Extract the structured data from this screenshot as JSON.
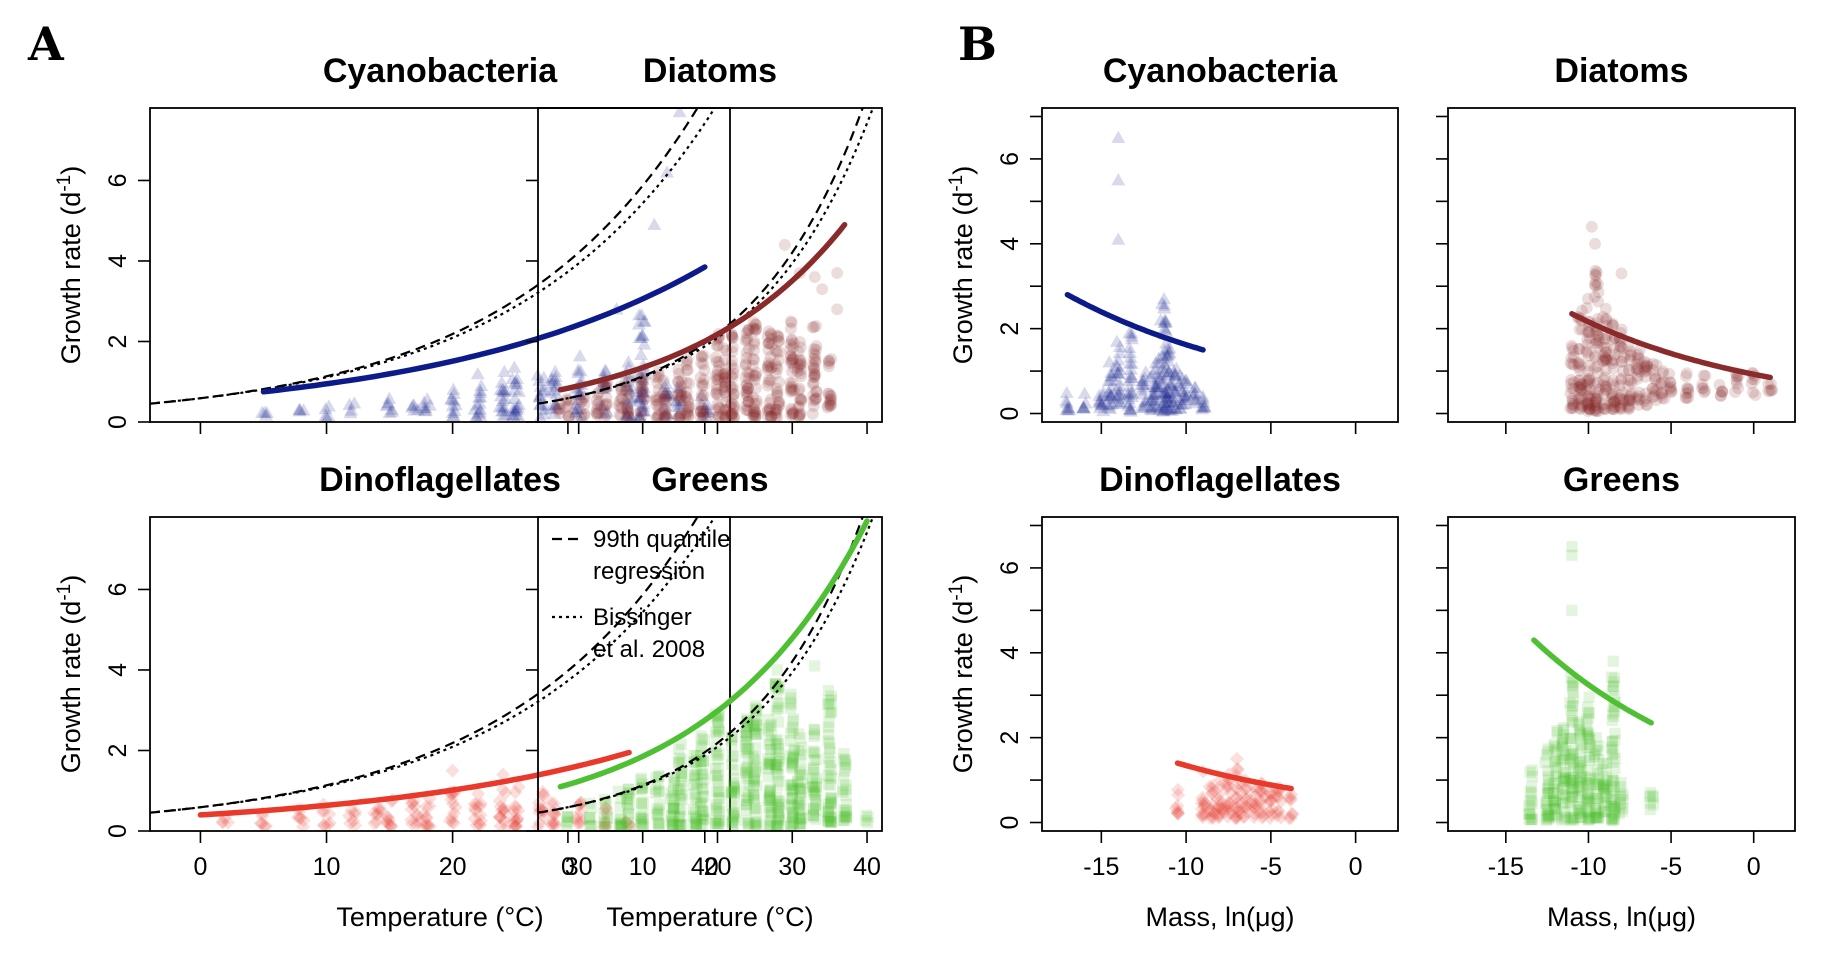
{
  "figure": {
    "panel_letters": [
      "A",
      "B"
    ],
    "legend": {
      "dashed_label_1": "99th quantile",
      "dashed_label_2": "regression",
      "dotted_label_1": "Bissinger",
      "dotted_label_2": "et al. 2008"
    }
  },
  "colors": {
    "Cyanobacteria": "#0d1a8a",
    "Diatoms": "#8b2a2a",
    "Dinoflagellates": "#e8392a",
    "Greens": "#4fc034"
  },
  "chart_data": [
    {
      "id": "A-Cyanobacteria",
      "type": "scatter",
      "group": "A",
      "title": "Cyanobacteria",
      "xlabel": "",
      "ylabel": "Growth rate (d^-1)",
      "xlim": [
        -4,
        42
      ],
      "ylim": [
        0,
        7.8
      ],
      "xticks": [
        0,
        10,
        20,
        30,
        40
      ],
      "yticks": [
        0,
        2,
        4,
        6
      ],
      "show_xticklabels": false,
      "show_yticklabels": true,
      "marker": "triangle",
      "point_columns": [
        [
          5,
          0.15,
          0.3
        ],
        [
          8,
          0.2,
          0.35
        ],
        [
          10,
          0.1,
          0.45
        ],
        [
          12,
          0.2,
          0.5
        ],
        [
          15,
          0.1,
          0.6
        ],
        [
          17,
          0.2,
          0.55
        ],
        [
          18,
          0.2,
          0.7
        ],
        [
          20,
          0.15,
          0.9
        ],
        [
          22,
          0.1,
          1.2
        ],
        [
          24,
          0.1,
          1.3
        ],
        [
          25,
          0.1,
          1.5
        ],
        [
          27,
          0.1,
          1.2
        ],
        [
          28,
          0.2,
          1.4
        ],
        [
          30,
          0.1,
          1.7
        ],
        [
          32,
          0.2,
          1.3
        ],
        [
          34,
          0.1,
          1.5
        ],
        [
          35,
          0.1,
          2.8
        ],
        [
          37,
          0.1,
          1.0
        ],
        [
          38,
          0.2,
          0.9
        ],
        [
          40,
          0.1,
          0.8
        ]
      ],
      "extra_points": [
        [
          38,
          7.7
        ],
        [
          37,
          6.2
        ],
        [
          36,
          4.9
        ],
        [
          33,
          2.8
        ]
      ],
      "fit_range": [
        5,
        40
      ],
      "fit_endpoints": [
        0.75,
        3.85
      ],
      "quantile_line": [
        0.59,
        0.0655
      ],
      "bissinger_line": [
        0.59,
        0.0633
      ]
    },
    {
      "id": "A-Diatoms",
      "type": "scatter",
      "group": "A",
      "title": "Diatoms",
      "xlabel": "",
      "ylabel": "",
      "xlim": [
        -4,
        42
      ],
      "ylim": [
        0,
        7.8
      ],
      "xticks": [
        0,
        10,
        20,
        30,
        40
      ],
      "yticks": [
        0,
        2,
        4,
        6
      ],
      "show_xticklabels": false,
      "show_yticklabels": false,
      "marker": "circle",
      "point_columns": [
        [
          -1,
          0.15,
          0.5
        ],
        [
          0,
          0.1,
          0.7
        ],
        [
          2,
          0.1,
          0.7
        ],
        [
          4,
          0.1,
          0.8
        ],
        [
          5,
          0.1,
          1.0
        ],
        [
          7,
          0.1,
          0.9
        ],
        [
          8,
          0.1,
          1.1
        ],
        [
          10,
          0.1,
          1.2
        ],
        [
          12,
          0.1,
          1.3
        ],
        [
          13,
          0.1,
          1.2
        ],
        [
          15,
          0.1,
          1.5
        ],
        [
          16,
          0.1,
          1.6
        ],
        [
          18,
          0.1,
          1.8
        ],
        [
          20,
          0.1,
          2.2
        ],
        [
          21,
          0.1,
          2.0
        ],
        [
          22,
          0.1,
          2.4
        ],
        [
          24,
          0.1,
          2.4
        ],
        [
          25,
          0.1,
          2.6
        ],
        [
          27,
          0.1,
          2.5
        ],
        [
          28,
          0.1,
          2.2
        ],
        [
          30,
          0.1,
          2.5
        ],
        [
          31,
          0.1,
          2.0
        ],
        [
          33,
          0.2,
          2.4
        ],
        [
          35,
          0.3,
          1.6
        ]
      ],
      "extra_points": [
        [
          29,
          4.4
        ],
        [
          31,
          3.7
        ],
        [
          33,
          3.6
        ],
        [
          36,
          3.7
        ],
        [
          36,
          2.8
        ],
        [
          34,
          3.3
        ]
      ],
      "fit_range": [
        -1,
        37
      ],
      "fit_endpoints": [
        0.8,
        4.9
      ],
      "quantile_line": [
        0.59,
        0.0655
      ],
      "bissinger_line": [
        0.59,
        0.0633
      ]
    },
    {
      "id": "A-Dinoflagellates",
      "type": "scatter",
      "group": "A",
      "title": "Dinoflagellates",
      "xlabel": "Temperature (°C)",
      "ylabel": "Growth rate (d^-1)",
      "xlim": [
        -4,
        42
      ],
      "ylim": [
        0,
        7.8
      ],
      "xticks": [
        0,
        10,
        20,
        30,
        40
      ],
      "yticks": [
        0,
        2,
        4,
        6
      ],
      "show_xticklabels": true,
      "show_yticklabels": true,
      "marker": "diamond",
      "point_columns": [
        [
          2,
          0.2,
          0.4
        ],
        [
          5,
          0.1,
          0.5
        ],
        [
          8,
          0.1,
          0.6
        ],
        [
          10,
          0.1,
          0.7
        ],
        [
          12,
          0.1,
          0.6
        ],
        [
          14,
          0.1,
          0.7
        ],
        [
          15,
          0.1,
          0.8
        ],
        [
          17,
          0.1,
          0.9
        ],
        [
          18,
          0.1,
          0.9
        ],
        [
          20,
          0.1,
          1.0
        ],
        [
          22,
          0.1,
          1.0
        ],
        [
          24,
          0.1,
          1.1
        ],
        [
          25,
          0.1,
          1.2
        ],
        [
          27,
          0.1,
          1.0
        ],
        [
          28,
          0.1,
          0.9
        ],
        [
          30,
          0.1,
          0.8
        ],
        [
          32,
          0.1,
          0.6
        ],
        [
          34,
          0.1,
          0.4
        ]
      ],
      "extra_points": [
        [
          20,
          1.5
        ],
        [
          24,
          1.4
        ]
      ],
      "fit_range": [
        0,
        34
      ],
      "fit_endpoints": [
        0.4,
        1.95
      ],
      "quantile_line": [
        0.59,
        0.0655
      ],
      "bissinger_line": [
        0.59,
        0.0633
      ]
    },
    {
      "id": "A-Greens",
      "type": "scatter",
      "group": "A",
      "title": "Greens",
      "xlabel": "Temperature (°C)",
      "ylabel": "",
      "xlim": [
        -4,
        42
      ],
      "ylim": [
        0,
        7.8
      ],
      "xticks": [
        0,
        10,
        20,
        30,
        40
      ],
      "yticks": [
        0,
        2,
        4,
        6
      ],
      "show_xticklabels": true,
      "show_yticklabels": false,
      "marker": "square",
      "point_columns": [
        [
          0,
          0.1,
          0.5
        ],
        [
          3,
          0.1,
          0.7
        ],
        [
          5,
          0.1,
          0.8
        ],
        [
          7,
          0.1,
          1.0
        ],
        [
          8,
          0.1,
          1.2
        ],
        [
          10,
          0.1,
          1.5
        ],
        [
          12,
          0.1,
          1.4
        ],
        [
          14,
          0.1,
          1.8
        ],
        [
          15,
          0.1,
          2.2
        ],
        [
          17,
          0.1,
          2.0
        ],
        [
          18,
          0.1,
          2.4
        ],
        [
          20,
          0.1,
          3.0
        ],
        [
          22,
          0.1,
          2.4
        ],
        [
          24,
          0.1,
          2.8
        ],
        [
          25,
          0.1,
          3.2
        ],
        [
          27,
          0.1,
          2.8
        ],
        [
          28,
          0.1,
          3.8
        ],
        [
          30,
          0.1,
          3.4
        ],
        [
          31,
          0.1,
          2.5
        ],
        [
          33,
          0.1,
          2.6
        ],
        [
          35,
          0.2,
          3.6
        ],
        [
          37,
          0.2,
          2.0
        ],
        [
          40,
          0.2,
          0.5
        ]
      ],
      "extra_points": [
        [
          28,
          4.0
        ],
        [
          33,
          4.1
        ]
      ],
      "fit_range": [
        -1,
        40
      ],
      "fit_endpoints": [
        1.1,
        7.7
      ],
      "quantile_line": [
        0.59,
        0.0655
      ],
      "bissinger_line": [
        0.59,
        0.0633
      ]
    },
    {
      "id": "B-Cyanobacteria",
      "type": "scatter",
      "group": "B",
      "title": "Cyanobacteria",
      "xlabel": "",
      "ylabel": "Growth rate (d^-1)",
      "xlim": [
        -18.5,
        2.5
      ],
      "ylim": [
        -0.2,
        7.2
      ],
      "xticks": [
        -15,
        -10,
        -5,
        0
      ],
      "yticks": [
        0,
        2,
        4,
        6
      ],
      "show_xticklabels": false,
      "show_yticklabels": true,
      "marker": "triangle",
      "point_columns": [
        [
          -17,
          0.05,
          0.6
        ],
        [
          -16,
          0.1,
          0.5
        ],
        [
          -15,
          0.05,
          0.8
        ],
        [
          -14.5,
          0.1,
          1.3
        ],
        [
          -14,
          0.2,
          1.7
        ],
        [
          -13.3,
          0.05,
          2.0
        ],
        [
          -12.5,
          0.1,
          1.1
        ],
        [
          -12,
          0.05,
          1.0
        ],
        [
          -11.7,
          0.05,
          1.3
        ],
        [
          -11.3,
          0.05,
          2.6
        ],
        [
          -11,
          0.05,
          1.6
        ],
        [
          -10.7,
          0.05,
          1.2
        ],
        [
          -10.3,
          0.1,
          0.9
        ],
        [
          -10,
          0.1,
          0.8
        ],
        [
          -9.5,
          0.1,
          0.7
        ],
        [
          -9,
          0.1,
          0.7
        ]
      ],
      "extra_points": [
        [
          -14,
          6.5
        ],
        [
          -14,
          5.5
        ],
        [
          -14,
          4.1
        ],
        [
          -11.3,
          2.7
        ],
        [
          -11.5,
          2.2
        ]
      ],
      "fit_range": [
        -17,
        -9
      ],
      "fit_endpoints": [
        2.8,
        1.5
      ]
    },
    {
      "id": "B-Diatoms",
      "type": "scatter",
      "group": "B",
      "title": "Diatoms",
      "xlabel": "",
      "ylabel": "",
      "xlim": [
        -18.5,
        2.5
      ],
      "ylim": [
        -0.2,
        7.2
      ],
      "xticks": [
        -15,
        -10,
        -5,
        0
      ],
      "yticks": [
        0,
        2,
        4,
        6
      ],
      "show_xticklabels": false,
      "show_yticklabels": false,
      "marker": "circle",
      "point_columns": [
        [
          -11,
          0.1,
          1.7
        ],
        [
          -10.5,
          0.1,
          2.5
        ],
        [
          -10,
          0.05,
          2.9
        ],
        [
          -9.5,
          0.05,
          3.4
        ],
        [
          -9,
          0.1,
          2.5
        ],
        [
          -8.5,
          0.1,
          2.2
        ],
        [
          -8,
          0.1,
          2.0
        ],
        [
          -7.5,
          0.1,
          1.7
        ],
        [
          -7,
          0.2,
          1.5
        ],
        [
          -6.5,
          0.2,
          1.3
        ],
        [
          -6,
          0.3,
          1.2
        ],
        [
          -5.5,
          0.3,
          1.0
        ],
        [
          -5,
          0.5,
          1.1
        ],
        [
          -4,
          0.3,
          1.0
        ],
        [
          -3,
          0.5,
          1.0
        ],
        [
          -2,
          0.4,
          0.8
        ],
        [
          -1,
          0.5,
          1.1
        ],
        [
          0,
          0.4,
          1.0
        ],
        [
          1,
          0.5,
          0.9
        ]
      ],
      "extra_points": [
        [
          -9.8,
          4.4
        ],
        [
          -9.6,
          4.0
        ],
        [
          -8,
          3.3
        ]
      ],
      "fit_range": [
        -11,
        1
      ],
      "fit_endpoints": [
        2.35,
        0.85
      ]
    },
    {
      "id": "B-Dinoflagellates",
      "type": "scatter",
      "group": "B",
      "title": "Dinoflagellates",
      "xlabel": "Mass, ln(μg)",
      "ylabel": "Growth rate (d^-1)",
      "xlim": [
        -18.5,
        2.5
      ],
      "ylim": [
        -0.2,
        7.2
      ],
      "xticks": [
        -15,
        -10,
        -5,
        0
      ],
      "yticks": [
        0,
        2,
        4,
        6
      ],
      "show_xticklabels": true,
      "show_yticklabels": true,
      "marker": "diamond",
      "point_columns": [
        [
          -10.5,
          0.2,
          0.8
        ],
        [
          -9,
          0.1,
          0.9
        ],
        [
          -8.5,
          0.1,
          1.0
        ],
        [
          -8,
          0.1,
          1.1
        ],
        [
          -7.5,
          0.1,
          1.2
        ],
        [
          -7,
          0.1,
          1.3
        ],
        [
          -6.5,
          0.1,
          1.0
        ],
        [
          -6,
          0.1,
          0.9
        ],
        [
          -5.5,
          0.1,
          1.0
        ],
        [
          -5,
          0.1,
          0.8
        ],
        [
          -4.5,
          0.1,
          0.9
        ],
        [
          -3.8,
          0.1,
          0.7
        ]
      ],
      "extra_points": [
        [
          -7,
          1.5
        ],
        [
          -9,
          1.2
        ]
      ],
      "fit_range": [
        -10.5,
        -3.8
      ],
      "fit_endpoints": [
        1.4,
        0.8
      ]
    },
    {
      "id": "B-Greens",
      "type": "scatter",
      "group": "B",
      "title": "Greens",
      "xlabel": "Mass, ln(μg)",
      "ylabel": "",
      "xlim": [
        -18.5,
        2.5
      ],
      "ylim": [
        -0.2,
        7.2
      ],
      "xticks": [
        -15,
        -10,
        -5,
        0
      ],
      "yticks": [
        0,
        2,
        4,
        6
      ],
      "show_xticklabels": true,
      "show_yticklabels": false,
      "marker": "square",
      "point_columns": [
        [
          -13.5,
          0.05,
          1.3
        ],
        [
          -12.5,
          0.05,
          2.0
        ],
        [
          -12,
          0.1,
          2.2
        ],
        [
          -11.5,
          0.05,
          2.3
        ],
        [
          -11,
          0.05,
          3.5
        ],
        [
          -10.5,
          0.1,
          2.5
        ],
        [
          -10,
          0.05,
          3.0
        ],
        [
          -9.5,
          0.1,
          2.2
        ],
        [
          -9,
          0.1,
          1.6
        ],
        [
          -8.5,
          0.05,
          3.5
        ],
        [
          -8,
          0.2,
          1.0
        ],
        [
          -6.2,
          0.3,
          0.8
        ]
      ],
      "extra_points": [
        [
          -11,
          6.5
        ],
        [
          -11,
          6.3
        ],
        [
          -11,
          5.0
        ],
        [
          -8.5,
          3.8
        ]
      ],
      "fit_range": [
        -13.3,
        -6.2
      ],
      "fit_endpoints": [
        4.3,
        2.35
      ]
    }
  ]
}
